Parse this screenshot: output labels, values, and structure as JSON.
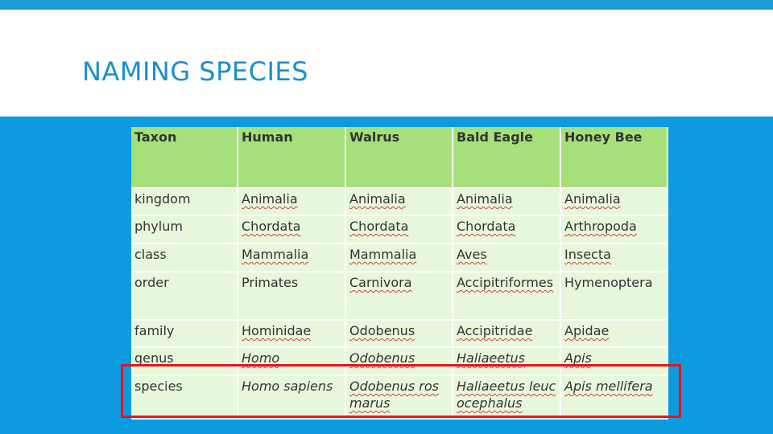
{
  "slide": {
    "title": "NAMING SPECIES",
    "colors": {
      "top_bar": "#1a9ad6",
      "content_background": "#0d9be0",
      "title_text": "#1a8fcc",
      "table_header": "#a6e07a",
      "table_row": "#e6f7dc",
      "highlight_border": "#e8131b"
    }
  },
  "table": {
    "headers": [
      "Taxon",
      "Human",
      "Walrus",
      "Bald Eagle",
      "Honey Bee"
    ],
    "rows": [
      [
        "kingdom",
        "Animalia",
        "Animalia",
        "Animalia",
        "Animalia"
      ],
      [
        "phylum",
        "Chordata",
        "Chordata",
        "Chordata",
        "Arthropoda"
      ],
      [
        "class",
        "Mammalia",
        "Mammalia",
        "Aves",
        "Insecta"
      ],
      [
        "order",
        "Primates",
        "Carnivora",
        "Accipitriformes",
        "Hymenoptera"
      ],
      [
        "family",
        "Hominidae",
        "Odobenus",
        "Accipitridae",
        "Apidae"
      ],
      [
        "genus",
        "Homo",
        "Odobenus",
        "Haliaeetus",
        "Apis"
      ],
      [
        "species",
        "Homo sapiens",
        "Odobenus rosmarus",
        "Haliaeetus leucocephalus",
        "Apis mellifera"
      ]
    ],
    "highlighted_row": "species"
  }
}
